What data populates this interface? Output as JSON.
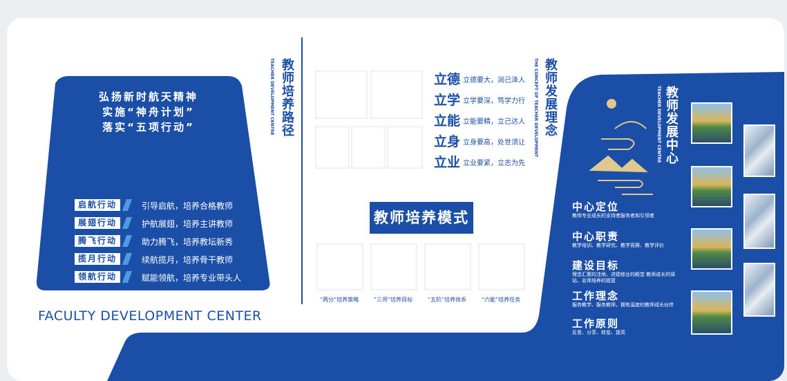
{
  "left": {
    "slogans": [
      "弘扬新时航天精神",
      "实施“神舟计划”",
      "落实“五项行动”"
    ],
    "actions": [
      {
        "name": "启航行动",
        "desc": "引导启航，培养合格教师"
      },
      {
        "name": "展翅行动",
        "desc": "护航展翅，培养主讲教师"
      },
      {
        "name": "腾飞行动",
        "desc": "助力腾飞，培养教坛新秀"
      },
      {
        "name": "揽月行动",
        "desc": "续航揽月，培养骨干教师"
      },
      {
        "name": "领航行动",
        "desc": "赋能领航，培养专业带头人"
      }
    ],
    "footer": "FACULTY DEVELOPMENT CENTER"
  },
  "path": {
    "title": "教师培养路径",
    "subtitle": "TEACHER DEVELOPMENT CENTRE"
  },
  "concept": {
    "title": "教师发展理念",
    "subtitle": "THE CONCEPT OF TEACHER DEVELOPMENT",
    "items": [
      {
        "key": "立德",
        "text": "立德要大，润己泽人"
      },
      {
        "key": "立学",
        "text": "立学要深，笃学力行"
      },
      {
        "key": "立能",
        "text": "立能要精，立己达人"
      },
      {
        "key": "立身",
        "text": "立身要高，处世须让"
      },
      {
        "key": "立业",
        "text": "立业要紧，立志为先"
      }
    ]
  },
  "mode": {
    "title": "教师培养模式",
    "captions": [
      "“两分”培养策略",
      "“三师”培养目标",
      "“五阶”培养体系",
      "“六能”培养任务"
    ]
  },
  "center": {
    "title": "教师发展中心",
    "subtitle": "TEACHER DEVELOPMENT CENTRE",
    "items": [
      {
        "title": "中心定位",
        "text": "教师专业成长的支持者服务者和引领者"
      },
      {
        "title": "中心职责",
        "text": "教学培训、教学研究、教学竞赛、教学评价"
      },
      {
        "title": "建设目标",
        "text": "理念汇聚的洼地、进德修业的殿堂 教师成长的驿站、名师培养的摇篮"
      },
      {
        "title": "工作理念",
        "text": "服务教学、服务教师，拥有温度的教师成长伙伴"
      },
      {
        "title": "工作原则",
        "text": "反思、分享、转变、提高"
      }
    ]
  }
}
